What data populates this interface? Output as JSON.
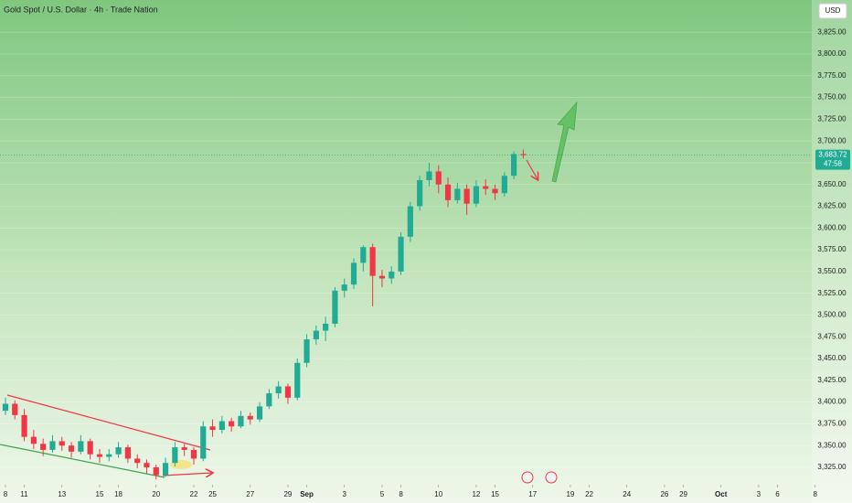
{
  "chart_data": {
    "type": "candlestick",
    "title": "Gold Spot / U.S. Dollar · 4h · Trade Nation",
    "currency": "USD",
    "countdown": "47:58",
    "price_label": {
      "value": 3683.72,
      "label": "3,683.72"
    },
    "up_color": "#22ab94",
    "down_color": "#f23645",
    "grid": true,
    "x": [
      0,
      0.5,
      1,
      1.5,
      2,
      2.5,
      3,
      3.5,
      4,
      4.5,
      5,
      5.5,
      6,
      6.5,
      7,
      7.5,
      8,
      8.5,
      9,
      9.5,
      10,
      10.5,
      11,
      11.5,
      12,
      12.5,
      13,
      13.5,
      14,
      14.5,
      15,
      15.5,
      16,
      16.5,
      17,
      17.5,
      18,
      18.5,
      19,
      19.5,
      20,
      20.5,
      21,
      21.5,
      22,
      22.5,
      23,
      23.5,
      24,
      24.5,
      25,
      25.5,
      26,
      26.5,
      27,
      27.5
    ],
    "open": [
      3390,
      3398,
      3385,
      3360,
      3352,
      3345,
      3355,
      3350,
      3343,
      3355,
      3340,
      3337,
      3340,
      3348,
      3335,
      3330,
      3325,
      3316,
      3330,
      3348,
      3345,
      3335,
      3372,
      3368,
      3378,
      3372,
      3384,
      3380,
      3395,
      3410,
      3418,
      3405,
      3445,
      3472,
      3482,
      3490,
      3528,
      3535,
      3560,
      3578,
      3545,
      3542,
      3550,
      3590,
      3625,
      3655,
      3665,
      3650,
      3632,
      3645,
      3628,
      3648,
      3645,
      3640,
      3660,
      3685
    ],
    "high": [
      3405,
      3402,
      3392,
      3368,
      3358,
      3362,
      3360,
      3354,
      3362,
      3358,
      3346,
      3346,
      3354,
      3351,
      3340,
      3334,
      3328,
      3336,
      3354,
      3352,
      3348,
      3378,
      3380,
      3384,
      3382,
      3390,
      3388,
      3400,
      3415,
      3424,
      3421,
      3450,
      3478,
      3488,
      3498,
      3532,
      3542,
      3565,
      3580,
      3582,
      3552,
      3556,
      3595,
      3630,
      3660,
      3675,
      3672,
      3658,
      3652,
      3650,
      3655,
      3656,
      3650,
      3664,
      3688,
      3690
    ],
    "low": [
      3385,
      3380,
      3355,
      3346,
      3338,
      3342,
      3344,
      3336,
      3340,
      3334,
      3330,
      3332,
      3336,
      3330,
      3324,
      3318,
      3311,
      3314,
      3326,
      3338,
      3328,
      3332,
      3360,
      3364,
      3366,
      3370,
      3374,
      3377,
      3392,
      3404,
      3398,
      3402,
      3440,
      3466,
      3470,
      3486,
      3520,
      3530,
      3550,
      3510,
      3532,
      3536,
      3546,
      3584,
      3620,
      3648,
      3640,
      3624,
      3628,
      3615,
      3624,
      3638,
      3632,
      3636,
      3656,
      3680
    ],
    "close": [
      3398,
      3385,
      3360,
      3352,
      3345,
      3355,
      3350,
      3343,
      3355,
      3340,
      3337,
      3340,
      3348,
      3335,
      3330,
      3325,
      3316,
      3330,
      3348,
      3345,
      3335,
      3372,
      3368,
      3378,
      3372,
      3384,
      3380,
      3395,
      3410,
      3418,
      3405,
      3445,
      3472,
      3482,
      3490,
      3528,
      3535,
      3560,
      3578,
      3545,
      3542,
      3550,
      3590,
      3625,
      3655,
      3665,
      3650,
      3632,
      3645,
      3628,
      3648,
      3645,
      3640,
      3660,
      3685,
      3683.72
    ],
    "xlim": [
      -0.29,
      42.82
    ],
    "xticks": [
      {
        "value": 0,
        "label": "8"
      },
      {
        "value": 1,
        "label": "11"
      },
      {
        "value": 3,
        "label": "13"
      },
      {
        "value": 5,
        "label": "15"
      },
      {
        "value": 6,
        "label": "18"
      },
      {
        "value": 8,
        "label": "20"
      },
      {
        "value": 10,
        "label": "22"
      },
      {
        "value": 11,
        "label": "25"
      },
      {
        "value": 13,
        "label": "27"
      },
      {
        "value": 15,
        "label": "29"
      },
      {
        "value": 16,
        "label": "Sep"
      },
      {
        "value": 18,
        "label": "3"
      },
      {
        "value": 20,
        "label": "5"
      },
      {
        "value": 21,
        "label": "8"
      },
      {
        "value": 23,
        "label": "10"
      },
      {
        "value": 25,
        "label": "12"
      },
      {
        "value": 26,
        "label": "15"
      },
      {
        "value": 28,
        "label": "17"
      },
      {
        "value": 30,
        "label": "19"
      },
      {
        "value": 31,
        "label": "22"
      },
      {
        "value": 33,
        "label": "24"
      },
      {
        "value": 35,
        "label": "26"
      },
      {
        "value": 36,
        "label": "29"
      },
      {
        "value": 38,
        "label": "Oct"
      },
      {
        "value": 40,
        "label": "3"
      },
      {
        "value": 41,
        "label": "6"
      },
      {
        "value": 43,
        "label": "8"
      }
    ],
    "ylim": [
      3305,
      3862
    ],
    "yticks": [
      {
        "value": 3325,
        "label": "3,325.00"
      },
      {
        "value": 3350,
        "label": "3,350.00"
      },
      {
        "value": 3375,
        "label": "3,375.00"
      },
      {
        "value": 3400,
        "label": "3,400.00"
      },
      {
        "value": 3425,
        "label": "3,425.00"
      },
      {
        "value": 3450,
        "label": "3,450.00"
      },
      {
        "value": 3475,
        "label": "3,475.00"
      },
      {
        "value": 3500,
        "label": "3,500.00"
      },
      {
        "value": 3525,
        "label": "3,525.00"
      },
      {
        "value": 3550,
        "label": "3,550.00"
      },
      {
        "value": 3575,
        "label": "3,575.00"
      },
      {
        "value": 3600,
        "label": "3,600.00"
      },
      {
        "value": 3625,
        "label": "3,625.00"
      },
      {
        "value": 3650,
        "label": "3,650.00"
      },
      {
        "value": 3675,
        "label": "3,675.00"
      },
      {
        "value": 3700,
        "label": "3,700.00"
      },
      {
        "value": 3725,
        "label": "3,725.00"
      },
      {
        "value": 3750,
        "label": "3,750.00"
      },
      {
        "value": 3775,
        "label": "3,775.00"
      },
      {
        "value": 3800,
        "label": "3,800.00"
      },
      {
        "value": 3825,
        "label": "3,825.00"
      }
    ]
  }
}
